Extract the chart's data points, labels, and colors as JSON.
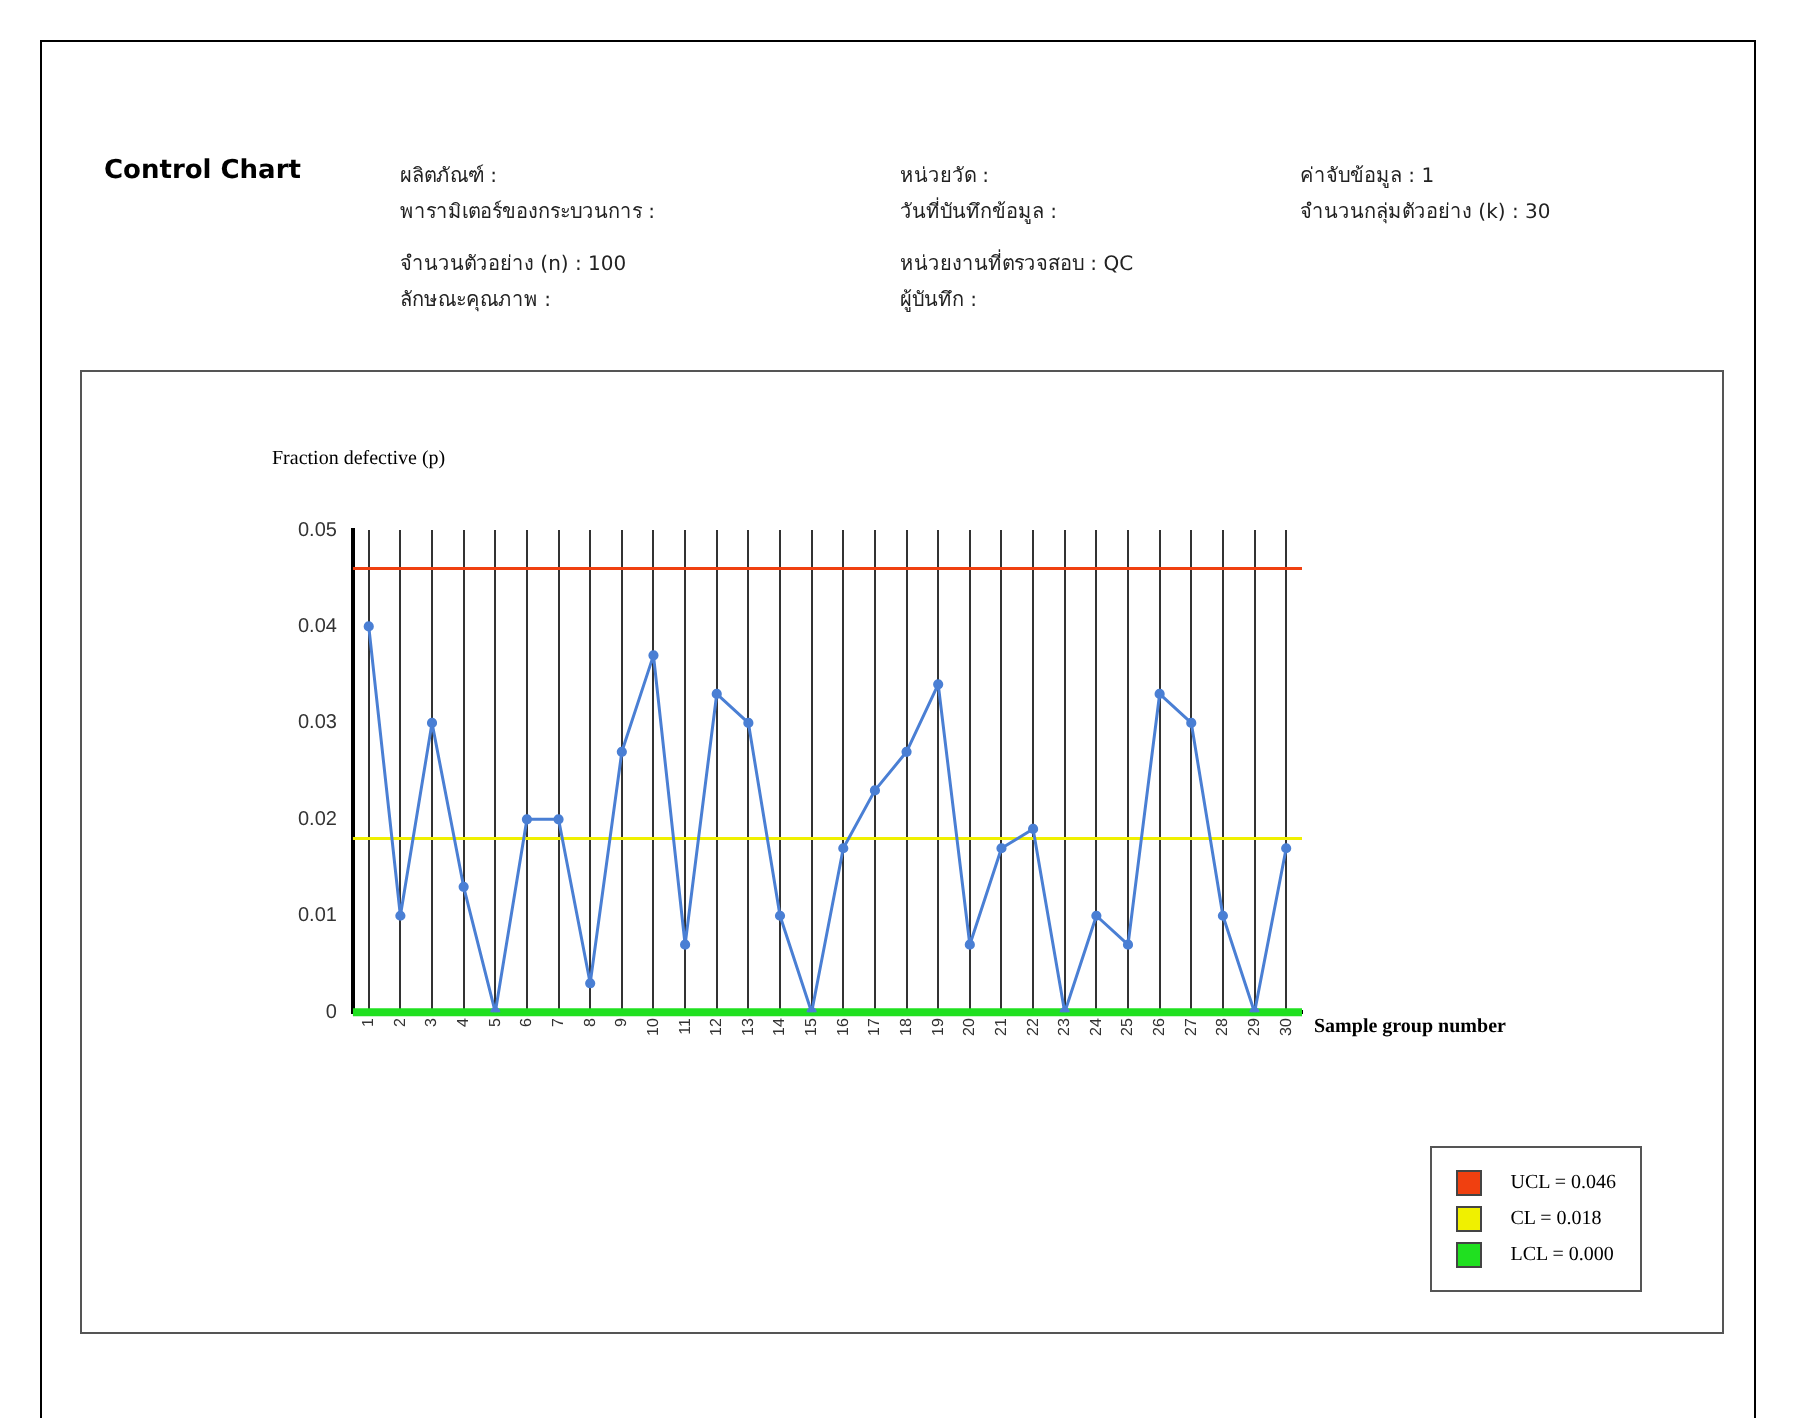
{
  "chart_data": {
    "type": "line",
    "title": "Control Chart",
    "annotations": [
      "ผลิตภัณฑ์ :",
      "พารามิเตอร์ของกระบวนการ :",
      "จำนวนตัวอย่าง (n) : 100",
      "ลักษณะคุณภาพ :",
      "หน่วยวัด :",
      "วันที่บันทึกข้อมูล :",
      "หน่วยงานที่ตรวจสอบ : QC",
      "ผู้บันทึก :",
      "ค่าจับข้อมูล : 1",
      "จำนวนกลุ่มตัวอย่าง (k) : 30"
    ],
    "xlabel": "Sample group number",
    "ylabel": "Fraction defective (p)",
    "categories": [
      "1",
      "2",
      "3",
      "4",
      "5",
      "6",
      "7",
      "8",
      "9",
      "10",
      "11",
      "12",
      "13",
      "14",
      "15",
      "16",
      "17",
      "18",
      "19",
      "20",
      "21",
      "22",
      "23",
      "24",
      "25",
      "26",
      "27",
      "28",
      "29",
      "30"
    ],
    "series": [
      {
        "color": "#4a7fd4",
        "values": [
          0.04,
          0.01,
          0.03,
          0.013,
          0.0,
          0.02,
          0.02,
          0.003,
          0.027,
          0.037,
          0.007,
          0.033,
          0.03,
          0.01,
          0.0,
          0.017,
          0.023,
          0.027,
          0.034,
          0.007,
          0.017,
          0.019,
          0.0,
          0.01,
          0.007,
          0.033,
          0.03,
          0.01,
          0.0,
          0.017
        ]
      }
    ],
    "ylim": [
      0,
      0.05
    ],
    "yticks": [
      0,
      0.01,
      0.02,
      0.03,
      0.04,
      0.05
    ],
    "ref_lines": [
      {
        "axis": "y",
        "value": 0.046,
        "label": "UCL = 0.046",
        "color": "#f04010"
      },
      {
        "axis": "y",
        "value": 0.018,
        "label": "CL = 0.018",
        "color": "#f0f000"
      },
      {
        "axis": "y",
        "value": 0,
        "label": "LCL = 0.000",
        "color": "#20e020"
      }
    ],
    "grid": "x",
    "legend": "bottom right",
    "marker": "circle",
    "line_style": "solid"
  }
}
